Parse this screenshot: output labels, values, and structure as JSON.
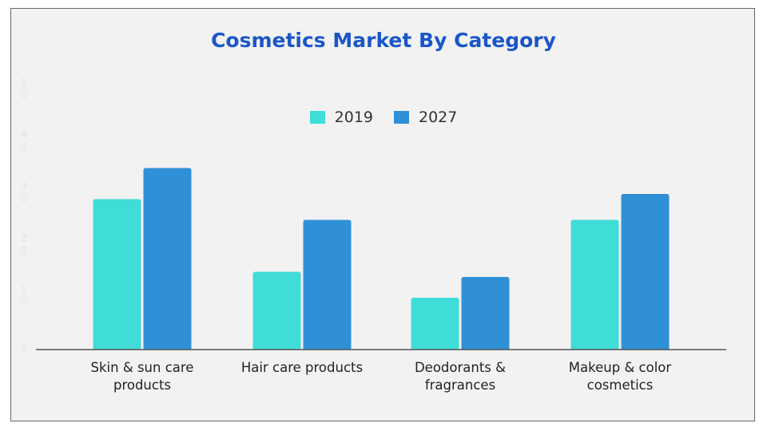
{
  "chart_data": {
    "type": "bar",
    "title": "Cosmetics Market By Category",
    "categories": [
      "Skin & sun care\nproducts",
      "Hair care products",
      "Deodorants &\nfragrances",
      "Makeup & color\ncosmetics"
    ],
    "series": [
      {
        "name": "2019",
        "values": [
          29,
          15,
          10,
          25
        ],
        "color": "#40dcd8"
      },
      {
        "name": "2027",
        "values": [
          35,
          25,
          14,
          30
        ],
        "color": "#2f90d8"
      }
    ],
    "yticks": [
      "0",
      "10",
      "20",
      "30",
      "40",
      "50"
    ],
    "ylim": [
      0,
      50
    ],
    "legend": "top-center",
    "grid": false
  }
}
